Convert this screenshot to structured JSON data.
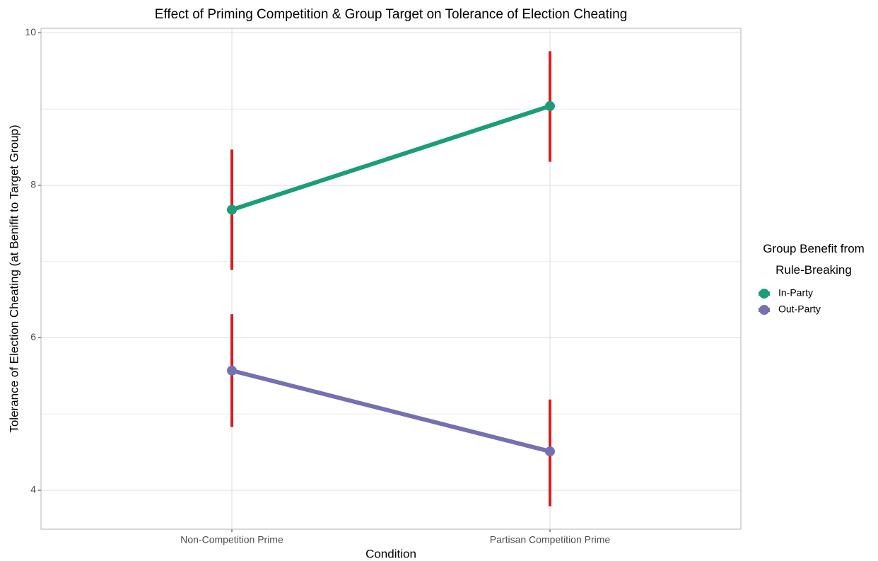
{
  "chart_data": {
    "type": "line",
    "title": "Effect of Priming Competition & Group Target on Tolerance of Election Cheating",
    "x_label": "Condition",
    "y_label": "Tolerance of Election Cheating (at Benifit to Target Group)",
    "legend_title": "Group Benefit from Rule-Breaking",
    "legend_position": "right",
    "categories": [
      "Non-Competition Prime",
      "Partisan Competition Prime"
    ],
    "series": [
      {
        "name": "In-Party",
        "color": "#1b9e77",
        "values": [
          7.68,
          9.04
        ],
        "lower": [
          6.89,
          8.31
        ],
        "upper": [
          8.47,
          9.76
        ]
      },
      {
        "name": "Out-Party",
        "color": "#7570b3",
        "values": [
          5.57,
          4.51
        ],
        "lower": [
          4.83,
          3.79
        ],
        "upper": [
          6.31,
          5.19
        ]
      }
    ],
    "error_color": "#e31a1c",
    "ylim": [
      3.49,
      10.06
    ],
    "yticks": [
      4,
      6,
      8,
      10
    ],
    "minor_yticks": [
      5,
      7,
      9
    ],
    "grid": true
  }
}
